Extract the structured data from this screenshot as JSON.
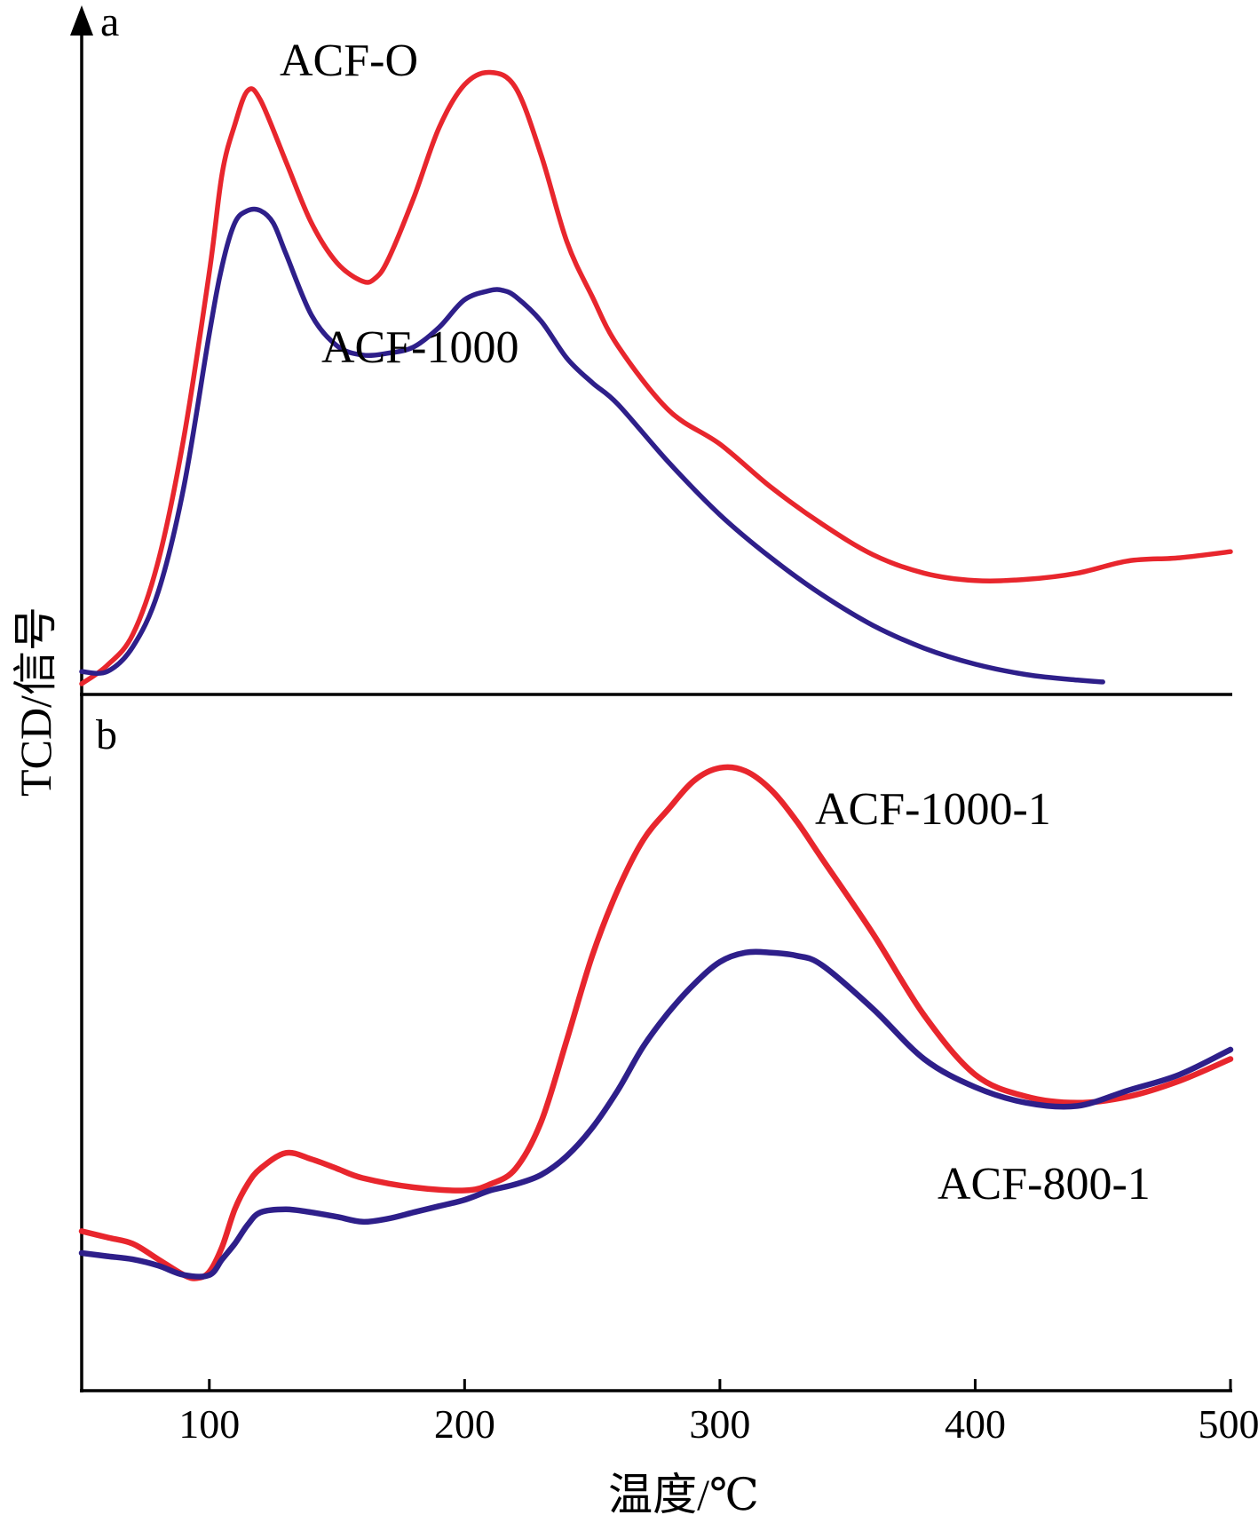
{
  "chart_data": {
    "type": "line",
    "xlabel": "温度/℃",
    "ylabel": "TCD/信号",
    "xlim": [
      50,
      500
    ],
    "x_ticks": [
      100,
      200,
      300,
      400,
      500
    ],
    "y_ticks_shown": false,
    "grid": false,
    "legend": "inline labels next to curves",
    "panels": [
      {
        "panel_label": "a",
        "ylim": [
          0,
          1.0
        ],
        "series": [
          {
            "name": "ACF-O",
            "color": "#e8262d",
            "x": [
              50,
              60,
              70,
              80,
              90,
              100,
              105,
              110,
              115,
              120,
              130,
              140,
              150,
              160,
              165,
              170,
              180,
              190,
              200,
              210,
              220,
              230,
              240,
              250,
              260,
              280,
              300,
              320,
              340,
              360,
              380,
              400,
              420,
              440,
              460,
              480,
              500
            ],
            "y": [
              0.0,
              0.03,
              0.08,
              0.2,
              0.4,
              0.67,
              0.83,
              0.91,
              0.965,
              0.95,
              0.85,
              0.75,
              0.685,
              0.655,
              0.66,
              0.69,
              0.79,
              0.905,
              0.975,
              0.995,
              0.97,
              0.86,
              0.72,
              0.63,
              0.55,
              0.445,
              0.39,
              0.32,
              0.26,
              0.21,
              0.18,
              0.168,
              0.17,
              0.18,
              0.2,
              0.205,
              0.215
            ]
          },
          {
            "name": "ACF-1000",
            "color": "#2e1f8a",
            "x": [
              50,
              60,
              70,
              80,
              90,
              100,
              105,
              110,
              115,
              120,
              125,
              130,
              140,
              150,
              160,
              170,
              180,
              190,
              200,
              210,
              215,
              220,
              230,
              240,
              250,
              260,
              280,
              300,
              320,
              340,
              360,
              380,
              400,
              420,
              440,
              450
            ],
            "y": [
              0.02,
              0.02,
              0.06,
              0.15,
              0.32,
              0.57,
              0.68,
              0.75,
              0.77,
              0.77,
              0.75,
              0.7,
              0.6,
              0.55,
              0.535,
              0.538,
              0.548,
              0.58,
              0.625,
              0.64,
              0.64,
              0.63,
              0.59,
              0.53,
              0.49,
              0.455,
              0.36,
              0.275,
              0.205,
              0.145,
              0.095,
              0.058,
              0.032,
              0.015,
              0.006,
              0.003
            ]
          }
        ]
      },
      {
        "panel_label": "b",
        "ylim": [
          0,
          1.0
        ],
        "series": [
          {
            "name": "ACF-1000-1",
            "color": "#e8262d",
            "x": [
              50,
              60,
              70,
              80,
              90,
              95,
              100,
              105,
              110,
              115,
              120,
              130,
              140,
              150,
              160,
              180,
              200,
              210,
              220,
              230,
              240,
              250,
              260,
              270,
              280,
              290,
              300,
              310,
              320,
              330,
              340,
              360,
              380,
              400,
              420,
              440,
              460,
              480,
              500
            ],
            "y": [
              0.225,
              0.215,
              0.205,
              0.18,
              0.155,
              0.15,
              0.16,
              0.2,
              0.26,
              0.3,
              0.325,
              0.35,
              0.34,
              0.325,
              0.31,
              0.295,
              0.29,
              0.3,
              0.325,
              0.4,
              0.53,
              0.665,
              0.77,
              0.85,
              0.9,
              0.945,
              0.965,
              0.96,
              0.93,
              0.88,
              0.82,
              0.7,
              0.57,
              0.475,
              0.44,
              0.43,
              0.44,
              0.465,
              0.5
            ]
          },
          {
            "name": "ACF-800-1",
            "color": "#2e1f8a",
            "x": [
              50,
              60,
              70,
              80,
              90,
              100,
              105,
              110,
              115,
              120,
              130,
              140,
              150,
              160,
              170,
              180,
              190,
              200,
              210,
              220,
              230,
              240,
              250,
              260,
              270,
              280,
              290,
              300,
              310,
              320,
              330,
              340,
              360,
              380,
              400,
              420,
              440,
              460,
              480,
              500
            ],
            "y": [
              0.19,
              0.185,
              0.18,
              0.17,
              0.155,
              0.155,
              0.18,
              0.205,
              0.235,
              0.255,
              0.26,
              0.255,
              0.248,
              0.24,
              0.245,
              0.255,
              0.265,
              0.275,
              0.29,
              0.3,
              0.315,
              0.345,
              0.39,
              0.45,
              0.52,
              0.575,
              0.62,
              0.655,
              0.67,
              0.67,
              0.665,
              0.65,
              0.58,
              0.5,
              0.455,
              0.43,
              0.425,
              0.45,
              0.475,
              0.515
            ]
          }
        ]
      }
    ]
  }
}
